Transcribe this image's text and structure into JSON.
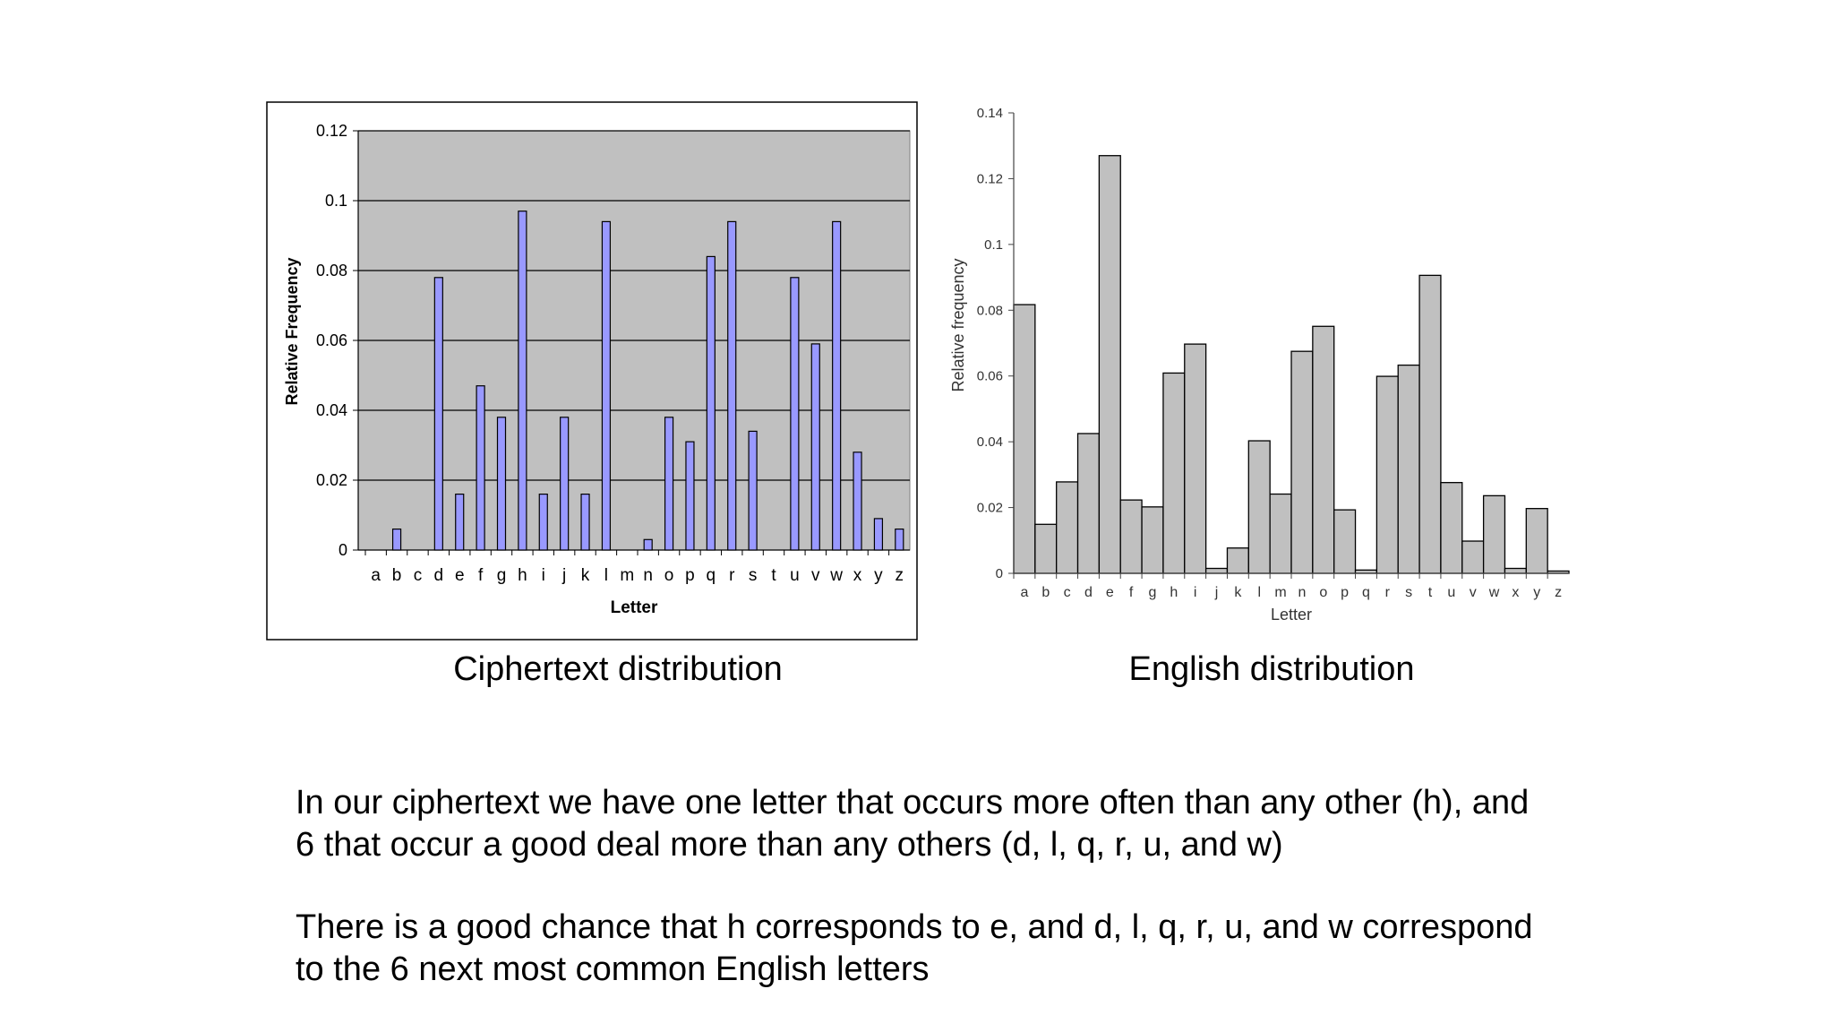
{
  "captions": {
    "cipher": "Ciphertext distribution",
    "english": "English distribution"
  },
  "paragraphs": [
    {
      "lines": [
        "In our ciphertext we have one letter that occurs more often than any other (h), and",
        "6 that occur a good deal more than any others (d, l, q, r, u, and w)"
      ]
    },
    {
      "lines": [
        "There is a good chance that h corresponds to e, and d, l, q, r, u, and w correspond",
        "to the 6 next most common English letters"
      ]
    }
  ],
  "chart_data": [
    {
      "type": "bar",
      "xlabel": "Letter",
      "ylabel": "Relative Frequency",
      "categories": [
        "a",
        "b",
        "c",
        "d",
        "e",
        "f",
        "g",
        "h",
        "i",
        "j",
        "k",
        "l",
        "m",
        "n",
        "o",
        "p",
        "q",
        "r",
        "s",
        "t",
        "u",
        "v",
        "w",
        "x",
        "y",
        "z"
      ],
      "values": [
        0,
        0.006,
        0,
        0.078,
        0.016,
        0.047,
        0.038,
        0.097,
        0.016,
        0.038,
        0.016,
        0.094,
        0,
        0.003,
        0.038,
        0.031,
        0.084,
        0.094,
        0.034,
        0,
        0.078,
        0.059,
        0.094,
        0.028,
        0.009,
        0.006
      ],
      "ylim": [
        0,
        0.12
      ],
      "yticks": [
        "0",
        "0.02",
        "0.04",
        "0.06",
        "0.08",
        "0.1",
        "0.12"
      ],
      "grid": true,
      "colors": {
        "bar": "#9999ff",
        "plot_background": "#c0c0c0",
        "frame": "#000000"
      }
    },
    {
      "type": "bar",
      "xlabel": "Letter",
      "ylabel": "Relative frequency",
      "categories": [
        "a",
        "b",
        "c",
        "d",
        "e",
        "f",
        "g",
        "h",
        "i",
        "j",
        "k",
        "l",
        "m",
        "n",
        "o",
        "p",
        "q",
        "r",
        "s",
        "t",
        "u",
        "v",
        "w",
        "x",
        "y",
        "z"
      ],
      "values": [
        0.0817,
        0.0149,
        0.0278,
        0.0425,
        0.127,
        0.0223,
        0.0202,
        0.0609,
        0.0697,
        0.0015,
        0.0077,
        0.0403,
        0.0241,
        0.0675,
        0.0751,
        0.0193,
        0.001,
        0.0599,
        0.0633,
        0.0906,
        0.0276,
        0.0098,
        0.0236,
        0.0015,
        0.0197,
        0.0007
      ],
      "ylim": [
        0,
        0.14
      ],
      "yticks": [
        "0",
        "0.02",
        "0.04",
        "0.06",
        "0.08",
        "0.1",
        "0.12",
        "0.14"
      ],
      "grid": false,
      "colors": {
        "bar": "#c0c0c0",
        "axis": "#444444"
      }
    }
  ]
}
